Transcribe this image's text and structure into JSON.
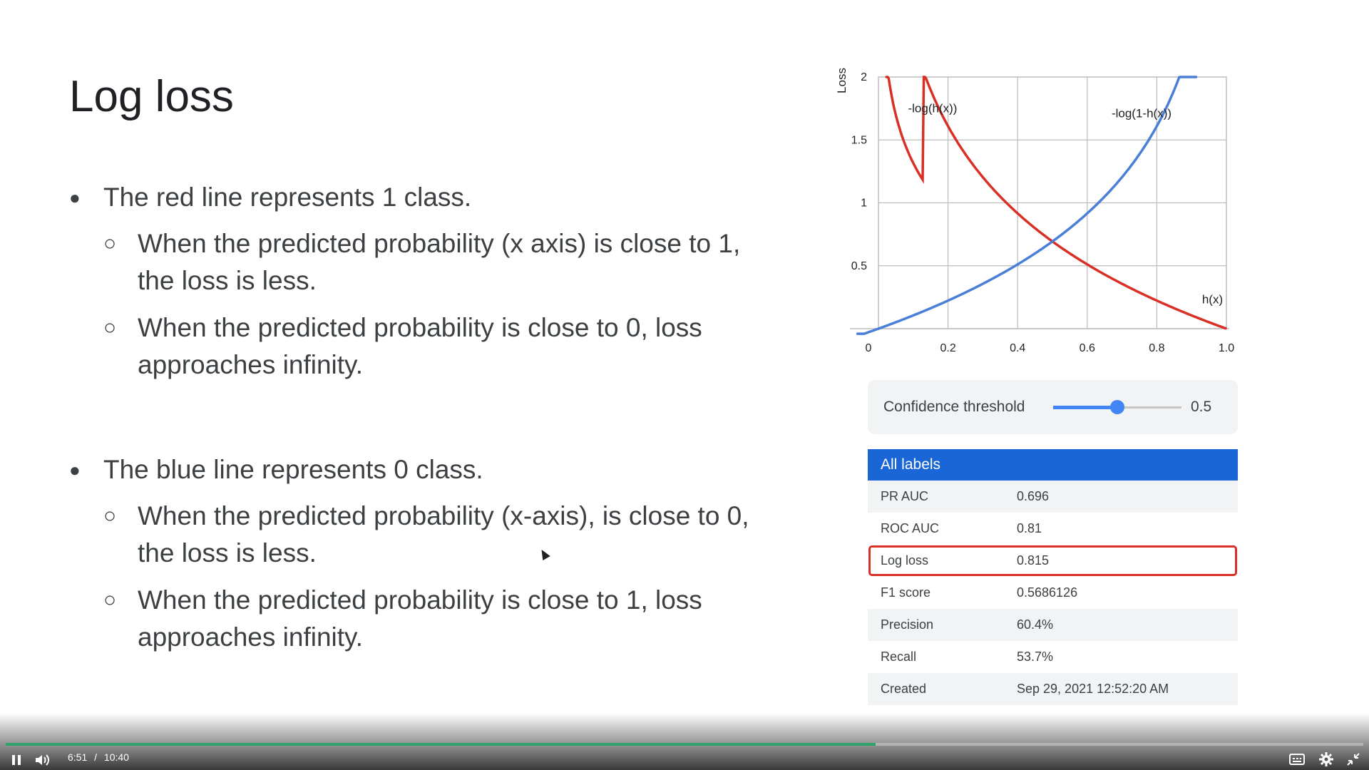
{
  "slide": {
    "title": "Log loss",
    "bullets": [
      {
        "text": "The red line represents 1 class.",
        "sub": [
          "When the predicted probability (x axis) is close to 1, the loss is less.",
          "When the predicted probability is close to 0, loss approaches infinity."
        ]
      },
      {
        "text": "The blue line represents 0 class.",
        "sub": [
          "When the predicted probability (x-axis), is close to 0, the loss is less.",
          "When the predicted probability is close to 1, loss approaches infinity."
        ]
      }
    ]
  },
  "chart_data": {
    "type": "line",
    "ylabel": "Loss",
    "xlabel": "h(x)",
    "xlim": [
      0,
      1.0
    ],
    "ylim": [
      0,
      2
    ],
    "x_ticks": [
      "0",
      "0.2",
      "0.4",
      "0.6",
      "0.8",
      "1.0"
    ],
    "y_ticks": [
      "0.5",
      "1",
      "1.5",
      "2"
    ],
    "grid": true,
    "series": [
      {
        "name": "-log(h(x))",
        "color": "#d93025",
        "function": "-log(h(x))"
      },
      {
        "name": "-log(1-h(x))",
        "color": "#4a7fd8",
        "function": "-log(1-h(x))"
      }
    ]
  },
  "threshold": {
    "label": "Confidence threshold",
    "value": "0.5",
    "fraction": 0.5
  },
  "metrics": {
    "header": "All labels",
    "rows": [
      {
        "key": "PR AUC",
        "value": "0.696"
      },
      {
        "key": "ROC  AUC",
        "value": "0.81"
      },
      {
        "key": "Log loss",
        "value": "0.815"
      },
      {
        "key": "F1 score",
        "value": "0.5686126"
      },
      {
        "key": "Precision",
        "value": "60.4%"
      },
      {
        "key": "Recall",
        "value": "53.7%"
      },
      {
        "key": "Created",
        "value": "Sep 29, 2021 12:52:20 AM"
      }
    ]
  },
  "player": {
    "current_time": "6:51",
    "separator": "/",
    "duration": "10:40",
    "progress_fraction": 0.641,
    "icons": [
      "pause-icon",
      "volume-icon",
      "captions-icon",
      "settings-icon",
      "exit-fullscreen-icon"
    ]
  }
}
